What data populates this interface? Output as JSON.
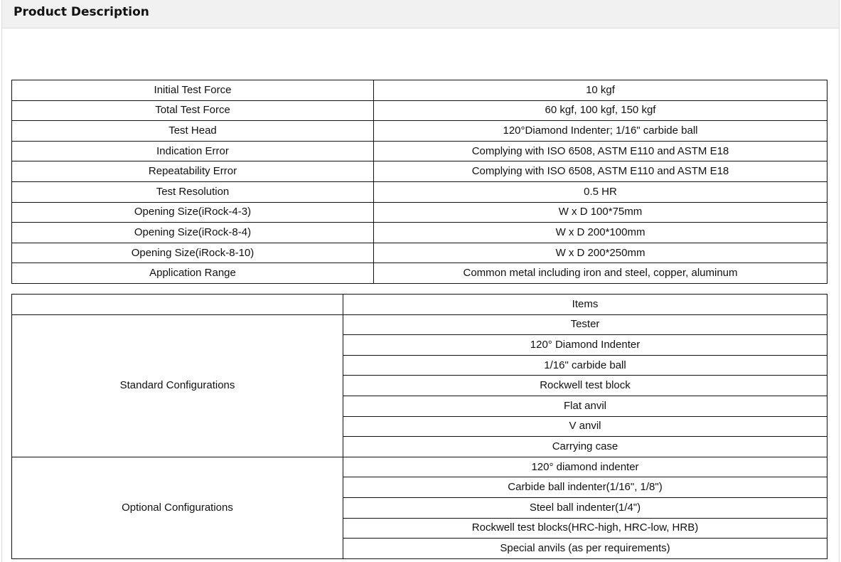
{
  "header": {
    "title": "Product Description"
  },
  "spec_table": {
    "rows": [
      {
        "label": "Initial Test Force",
        "value": "10 kgf"
      },
      {
        "label": "Total Test Force",
        "value": "60 kgf, 100 kgf, 150 kgf"
      },
      {
        "label": "Test Head",
        "value": "120°Diamond Indenter; 1/16\" carbide ball"
      },
      {
        "label": "Indication Error",
        "value": "Complying with ISO 6508, ASTM E110 and ASTM E18"
      },
      {
        "label": "Repeatability Error",
        "value": "Complying with ISO 6508, ASTM E110 and ASTM E18"
      },
      {
        "label": "Test Resolution",
        "value": "0.5 HR"
      },
      {
        "label": "Opening Size(iRock-4-3)",
        "value": "W x D 100*75mm"
      },
      {
        "label": "Opening Size(iRock-8-4)",
        "value": "W x D 200*100mm"
      },
      {
        "label": "Opening Size(iRock-8-10)",
        "value": "W x D 200*250mm"
      },
      {
        "label": "Application Range",
        "value": "Common metal including iron and steel, copper, aluminum"
      }
    ]
  },
  "config_table": {
    "header": {
      "label": "",
      "items": "Items"
    },
    "groups": [
      {
        "label": "Standard Configurations",
        "items": [
          "Tester",
          "120° Diamond Indenter",
          "1/16\" carbide ball",
          "Rockwell test block",
          "Flat anvil",
          "V anvil",
          "Carrying case"
        ]
      },
      {
        "label": "Optional Configurations",
        "items": [
          "120° diamond indenter",
          "Carbide ball indenter(1/16\", 1/8\")",
          "Steel ball indenter(1/4\")",
          "Rockwell test blocks(HRC-high, HRC-low, HRB)",
          "Special anvils (as per requirements)"
        ]
      }
    ]
  }
}
